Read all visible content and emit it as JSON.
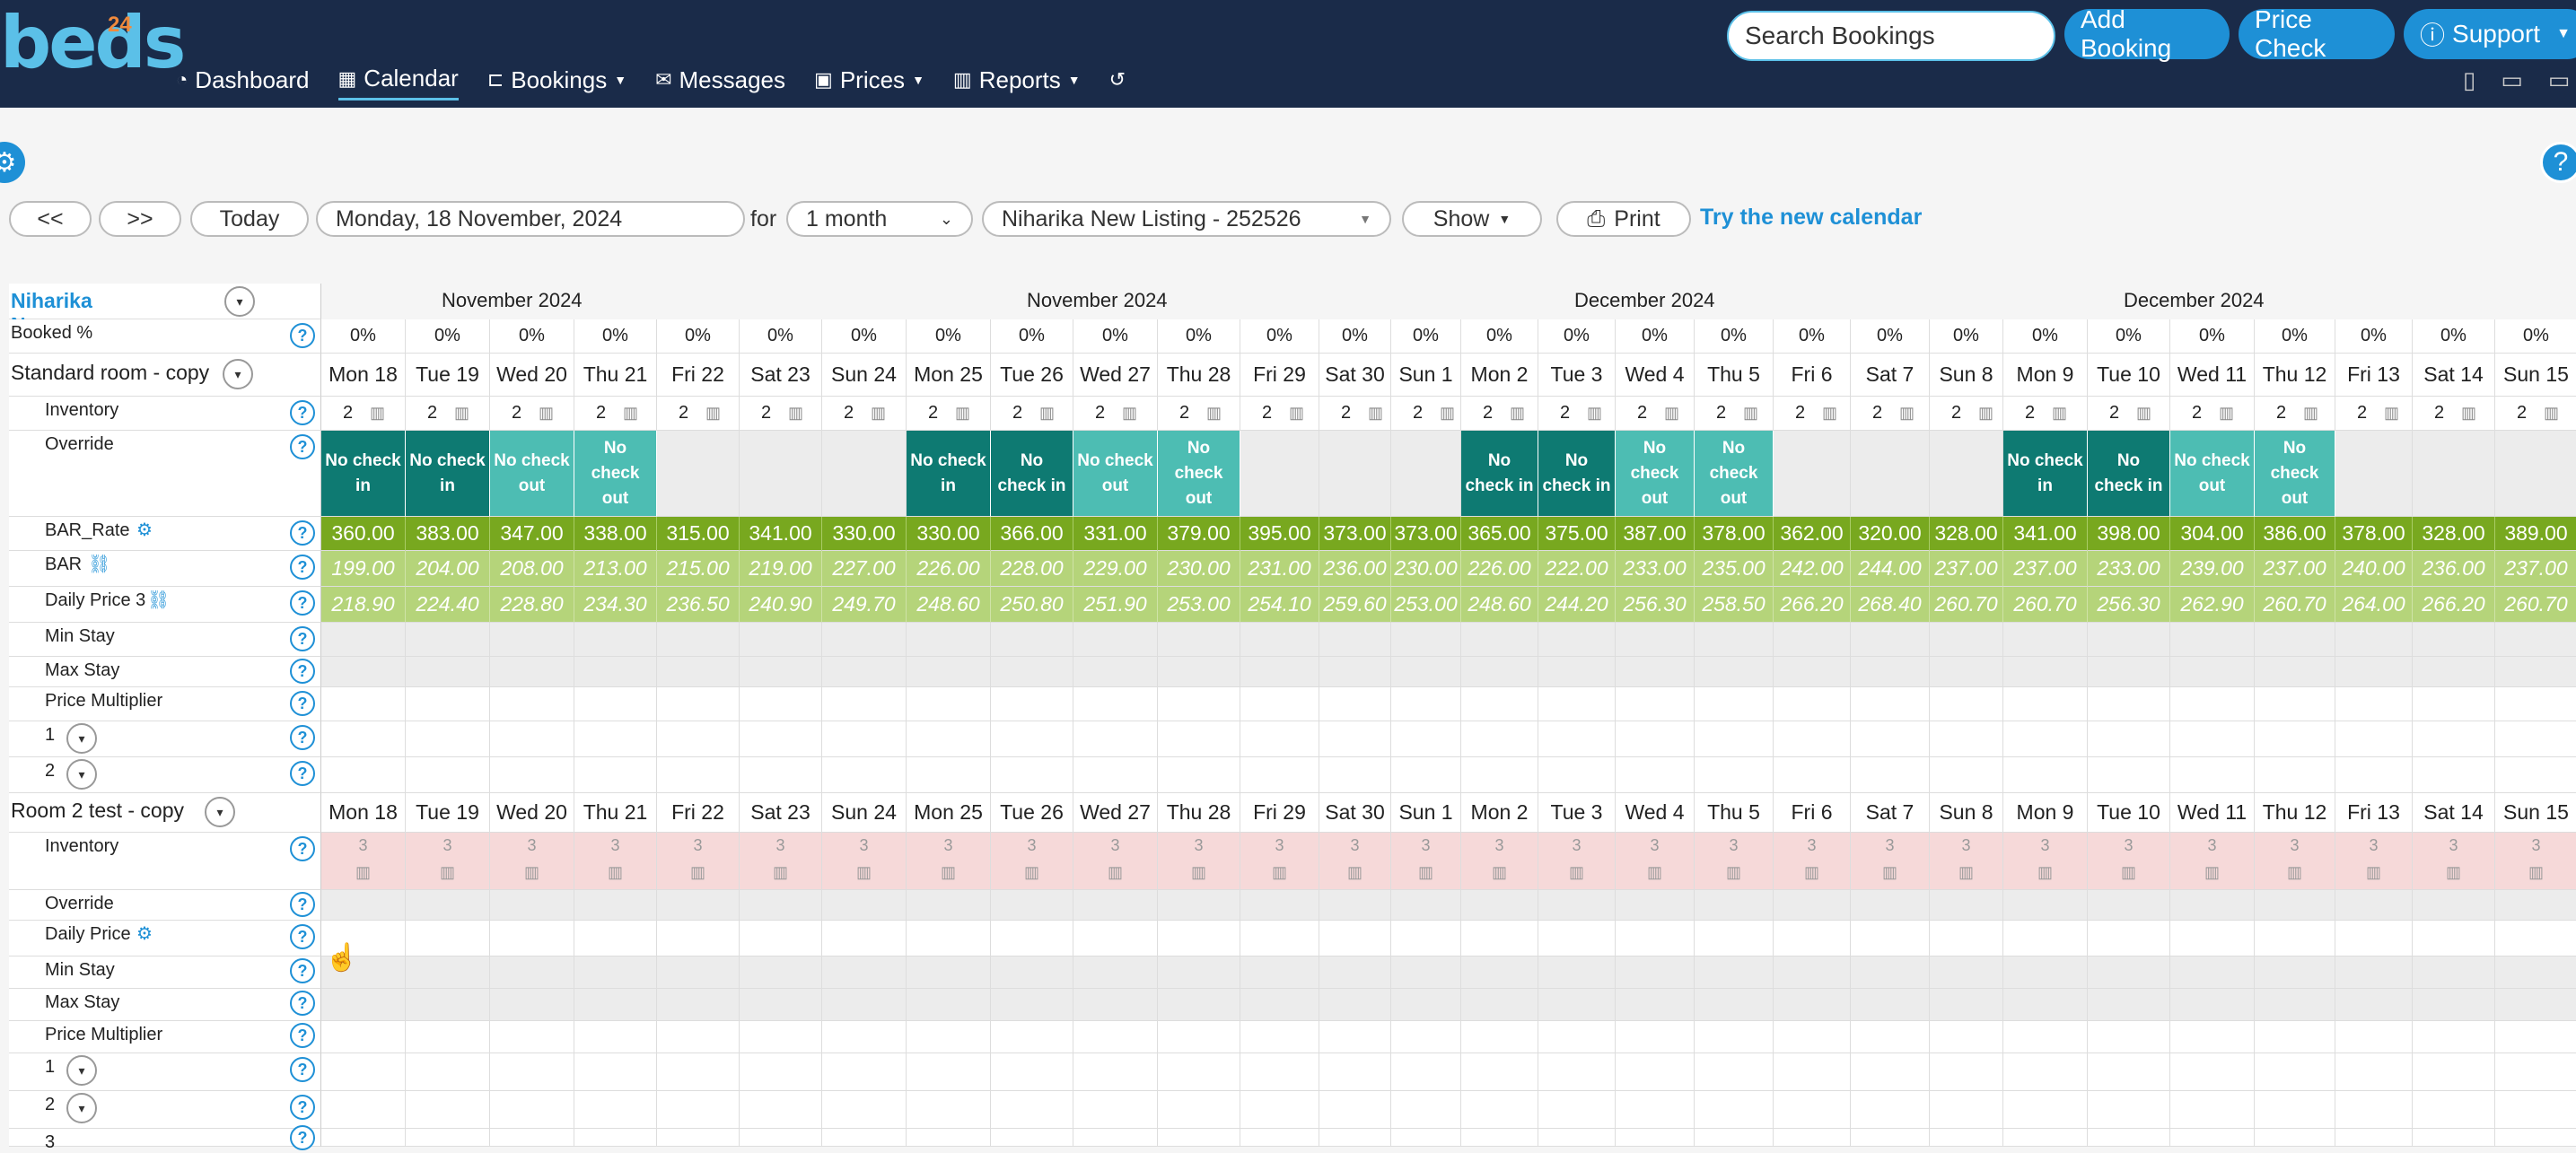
{
  "brand": {
    "name": "beds",
    "sup": "24"
  },
  "nav": {
    "items": [
      {
        "label": "Dashboard",
        "icon": "dashboard-icon",
        "glyph": "◔"
      },
      {
        "label": "Calendar",
        "icon": "calendar-icon",
        "glyph": "▦",
        "active": true
      },
      {
        "label": "Bookings",
        "icon": "bed-icon",
        "glyph": "⊏",
        "caret": true
      },
      {
        "label": "Messages",
        "icon": "message-icon",
        "glyph": "✉",
        "caret": false
      },
      {
        "label": "Prices",
        "icon": "money-icon",
        "glyph": "▣",
        "caret": true
      },
      {
        "label": "Reports",
        "icon": "bar-chart-icon",
        "glyph": "▥",
        "caret": true
      },
      {
        "label": "",
        "icon": "history-icon",
        "glyph": "↺"
      }
    ],
    "search_placeholder": "Search Bookings",
    "add_booking": "Add Booking",
    "price_check": "Price Check",
    "support": "Support"
  },
  "toolbar": {
    "prev": "<<",
    "next": ">>",
    "today": "Today",
    "date": "Monday, 18 November, 2024",
    "for_label": "for",
    "period": "1 month",
    "property": "Niharika New Listing - 252526",
    "show": "Show",
    "print": "Print",
    "new_calendar": "Try the new calendar"
  },
  "calendar": {
    "property_name": "Niharika New Listing",
    "months": [
      "November 2024",
      "November 2024",
      "December 2024",
      "December 2024"
    ],
    "days": [
      "Mon 18",
      "Tue 19",
      "Wed 20",
      "Thu 21",
      "Fri 22",
      "Sat 23",
      "Sun 24",
      "Mon 25",
      "Tue 26",
      "Wed 27",
      "Thu 28",
      "Fri 29",
      "Sat 30",
      "Sun 1",
      "Mon 2",
      "Tue 3",
      "Wed 4",
      "Thu 5",
      "Fri 6",
      "Sat 7",
      "Sun 8",
      "Mon 9",
      "Tue 10",
      "Wed 11",
      "Thu 12",
      "Fri 13",
      "Sat 14",
      "Sun 15"
    ],
    "booked_label": "Booked %",
    "booked": [
      "0%",
      "0%",
      "0%",
      "0%",
      "0%",
      "0%",
      "0%",
      "0%",
      "0%",
      "0%",
      "0%",
      "0%",
      "0%",
      "0%",
      "0%",
      "0%",
      "0%",
      "0%",
      "0%",
      "0%",
      "0%",
      "0%",
      "0%",
      "0%",
      "0%",
      "0%",
      "0%",
      "0%"
    ],
    "room1": {
      "name": "Standard room - copy",
      "inventory_label": "Inventory",
      "inventory": [
        "2",
        "2",
        "2",
        "2",
        "2",
        "2",
        "2",
        "2",
        "2",
        "2",
        "2",
        "2",
        "2",
        "2",
        "2",
        "2",
        "2",
        "2",
        "2",
        "2",
        "2",
        "2",
        "2",
        "2",
        "2",
        "2",
        "2",
        "2"
      ],
      "override_label": "Override",
      "override": [
        "No check in",
        "No check in",
        "No check out",
        "No check out",
        "",
        "",
        "",
        "No check in",
        "No check in",
        "No check out",
        "No check out",
        "",
        "",
        "",
        "No check in",
        "No check in",
        "No check out",
        "No check out",
        "",
        "",
        "",
        "No check in",
        "No check in",
        "No check out",
        "No check out",
        "",
        "",
        ""
      ],
      "bar_rate_label": "BAR_Rate",
      "bar_rate": [
        "360.00",
        "383.00",
        "347.00",
        "338.00",
        "315.00",
        "341.00",
        "330.00",
        "330.00",
        "366.00",
        "331.00",
        "379.00",
        "395.00",
        "373.00",
        "373.00",
        "365.00",
        "375.00",
        "387.00",
        "378.00",
        "362.00",
        "320.00",
        "328.00",
        "341.00",
        "398.00",
        "304.00",
        "386.00",
        "378.00",
        "328.00",
        "389.00"
      ],
      "bar_label": "BAR",
      "bar": [
        "199.00",
        "204.00",
        "208.00",
        "213.00",
        "215.00",
        "219.00",
        "227.00",
        "226.00",
        "228.00",
        "229.00",
        "230.00",
        "231.00",
        "236.00",
        "230.00",
        "226.00",
        "222.00",
        "233.00",
        "235.00",
        "242.00",
        "244.00",
        "237.00",
        "237.00",
        "233.00",
        "239.00",
        "237.00",
        "240.00",
        "236.00",
        "237.00"
      ],
      "daily3_label": "Daily Price 3",
      "daily3": [
        "218.90",
        "224.40",
        "228.80",
        "234.30",
        "236.50",
        "240.90",
        "249.70",
        "248.60",
        "250.80",
        "251.90",
        "253.00",
        "254.10",
        "259.60",
        "253.00",
        "248.60",
        "244.20",
        "256.30",
        "258.50",
        "266.20",
        "268.40",
        "260.70",
        "260.70",
        "256.30",
        "262.90",
        "260.70",
        "264.00",
        "266.20",
        "260.70"
      ],
      "min_stay_label": "Min Stay",
      "max_stay_label": "Max Stay",
      "multiplier_label": "Price Multiplier",
      "sub1": "1",
      "sub2": "2"
    },
    "room2": {
      "name": "Room 2 test - copy",
      "inventory_label": "Inventory",
      "inventory": [
        "3",
        "3",
        "3",
        "3",
        "3",
        "3",
        "3",
        "3",
        "3",
        "3",
        "3",
        "3",
        "3",
        "3",
        "3",
        "3",
        "3",
        "3",
        "3",
        "3",
        "3",
        "3",
        "3",
        "3",
        "3",
        "3",
        "3",
        "3"
      ],
      "override_label": "Override",
      "daily_label": "Daily Price",
      "min_stay_label": "Min Stay",
      "max_stay_label": "Max Stay",
      "multiplier_label": "Price Multiplier",
      "sub1": "1",
      "sub2": "2",
      "sub3": "3"
    }
  },
  "colors": {
    "navbar": "#1a2b49",
    "no_check_in": "#0e7a72",
    "no_check_out": "#4dbdb3",
    "bar_rate": "#78a81f",
    "bar": "#b5d47a",
    "inventory2": "#f6d9d9"
  }
}
